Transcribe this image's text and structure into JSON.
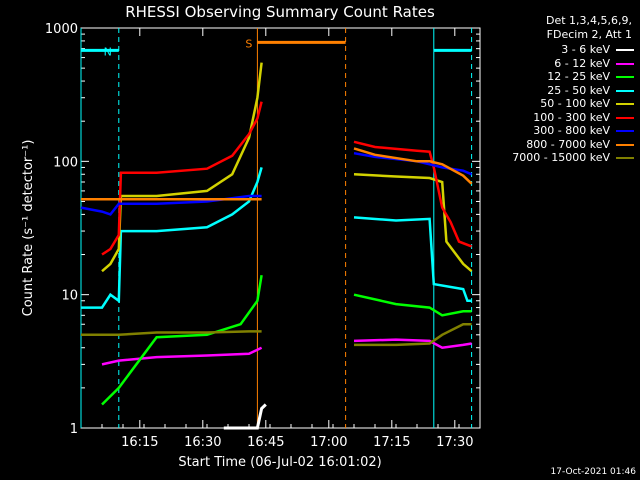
{
  "chart_data": {
    "type": "line",
    "title": "RHESSI Observing Summary Count Rates",
    "xlabel": "Start Time (06-Jul-02 16:01:02)",
    "ylabel": "Count Rate (s⁻¹ detector⁻¹)",
    "y_scale": "log",
    "ylim": [
      1,
      1000
    ],
    "xlim_minutes": [
      0,
      95
    ],
    "x_ticks": [
      {
        "minute": 14,
        "label": "16:15"
      },
      {
        "minute": 29,
        "label": "16:30"
      },
      {
        "minute": 44,
        "label": "16:45"
      },
      {
        "minute": 59,
        "label": "17:00"
      },
      {
        "minute": 74,
        "label": "17:15"
      },
      {
        "minute": 89,
        "label": "17:30"
      }
    ],
    "y_ticks": [
      {
        "value": 1,
        "label": "1"
      },
      {
        "value": 10,
        "label": "10"
      },
      {
        "value": 100,
        "label": "100"
      },
      {
        "value": 1000,
        "label": "1000"
      }
    ],
    "markers": [
      {
        "label": "N",
        "color": "#00ffff",
        "x_start": 0,
        "x_end": 9,
        "level": 680
      },
      {
        "label": "S",
        "color": "#ff8000",
        "x_start": 42,
        "x_end": 63,
        "level": 780
      },
      {
        "label": "",
        "color": "#00ffff",
        "x_start": 84,
        "x_end": 93,
        "level": 680
      }
    ],
    "segments_gap": {
      "from": 44,
      "to": 64
    },
    "series": [
      {
        "name": "3 - 6 keV",
        "color": "#ffffff",
        "values": [
          [
            34,
            1
          ],
          [
            42,
            1
          ],
          [
            43,
            1.4
          ],
          [
            44,
            1.5
          ]
        ]
      },
      {
        "name": "6 - 12 keV",
        "color": "#ff00ff",
        "values": [
          [
            5,
            3
          ],
          [
            9,
            3.2
          ],
          [
            18,
            3.4
          ],
          [
            30,
            3.5
          ],
          [
            40,
            3.6
          ],
          [
            43,
            4
          ],
          [
            65,
            4.5
          ],
          [
            75,
            4.6
          ],
          [
            83,
            4.5
          ],
          [
            86,
            4
          ],
          [
            91,
            4.2
          ],
          [
            93,
            4.3
          ]
        ]
      },
      {
        "name": "12 - 25 keV",
        "color": "#00ff00",
        "values": [
          [
            5,
            1.5
          ],
          [
            9,
            2
          ],
          [
            18,
            4.8
          ],
          [
            30,
            5
          ],
          [
            38,
            6
          ],
          [
            42,
            9
          ],
          [
            43,
            14
          ],
          [
            65,
            10
          ],
          [
            75,
            8.5
          ],
          [
            83,
            8
          ],
          [
            86,
            7
          ],
          [
            91,
            7.5
          ],
          [
            93,
            7.5
          ]
        ]
      },
      {
        "name": "25 - 50 keV",
        "color": "#00ffff",
        "values": [
          [
            0,
            8
          ],
          [
            5,
            8
          ],
          [
            7,
            10
          ],
          [
            9,
            9
          ],
          [
            9.5,
            30
          ],
          [
            18,
            30
          ],
          [
            30,
            32
          ],
          [
            36,
            40
          ],
          [
            40,
            50
          ],
          [
            42,
            70
          ],
          [
            43,
            90
          ],
          [
            65,
            38
          ],
          [
            75,
            36
          ],
          [
            83,
            37
          ],
          [
            84,
            12
          ],
          [
            91,
            11
          ],
          [
            92,
            9
          ],
          [
            93,
            9
          ]
        ]
      },
      {
        "name": "50 - 100 keV",
        "color": "#d2d200",
        "values": [
          [
            5,
            15
          ],
          [
            7,
            17
          ],
          [
            9,
            22
          ],
          [
            9.5,
            55
          ],
          [
            18,
            55
          ],
          [
            30,
            60
          ],
          [
            36,
            80
          ],
          [
            40,
            150
          ],
          [
            42,
            300
          ],
          [
            43,
            550
          ],
          [
            65,
            80
          ],
          [
            75,
            77
          ],
          [
            83,
            75
          ],
          [
            86,
            70
          ],
          [
            87,
            25
          ],
          [
            91,
            17
          ],
          [
            93,
            15
          ]
        ]
      },
      {
        "name": "100 - 300 keV",
        "color": "#ff0000",
        "values": [
          [
            5,
            20
          ],
          [
            7,
            22
          ],
          [
            9,
            28
          ],
          [
            9.5,
            82
          ],
          [
            18,
            82
          ],
          [
            30,
            88
          ],
          [
            36,
            110
          ],
          [
            40,
            160
          ],
          [
            42,
            210
          ],
          [
            43,
            280
          ],
          [
            65,
            140
          ],
          [
            70,
            128
          ],
          [
            80,
            120
          ],
          [
            83,
            118
          ],
          [
            84,
            90
          ],
          [
            86,
            45
          ],
          [
            88,
            35
          ],
          [
            90,
            25
          ],
          [
            93,
            23
          ]
        ]
      },
      {
        "name": "300 - 800 keV",
        "color": "#0000ff",
        "values": [
          [
            0,
            45
          ],
          [
            5,
            42
          ],
          [
            7,
            40
          ],
          [
            9,
            48
          ],
          [
            18,
            48
          ],
          [
            30,
            50
          ],
          [
            40,
            55
          ],
          [
            43,
            55
          ],
          [
            65,
            115
          ],
          [
            70,
            108
          ],
          [
            80,
            100
          ],
          [
            83,
            95
          ],
          [
            86,
            90
          ],
          [
            91,
            85
          ],
          [
            93,
            80
          ]
        ]
      },
      {
        "name": "800 - 7000 keV",
        "color": "#ff8000",
        "values": [
          [
            0,
            52
          ],
          [
            5,
            52
          ],
          [
            9,
            52
          ],
          [
            18,
            52
          ],
          [
            30,
            52
          ],
          [
            40,
            52
          ],
          [
            43,
            52
          ],
          [
            65,
            125
          ],
          [
            70,
            112
          ],
          [
            80,
            100
          ],
          [
            83,
            100
          ],
          [
            86,
            95
          ],
          [
            91,
            78
          ],
          [
            93,
            68
          ]
        ]
      },
      {
        "name": "7000 - 15000 keV",
        "color": "#808000",
        "values": [
          [
            0,
            5
          ],
          [
            9,
            5
          ],
          [
            18,
            5.2
          ],
          [
            30,
            5.2
          ],
          [
            40,
            5.3
          ],
          [
            43,
            5.3
          ],
          [
            65,
            4.2
          ],
          [
            75,
            4.2
          ],
          [
            83,
            4.3
          ],
          [
            86,
            5
          ],
          [
            91,
            6
          ],
          [
            93,
            6
          ]
        ]
      }
    ]
  },
  "legend_header": {
    "line1": "Det 1,3,4,5,6,9,",
    "line2": "FDecim 2, Att 1"
  },
  "timestamp": "17-Oct-2021 01:46"
}
